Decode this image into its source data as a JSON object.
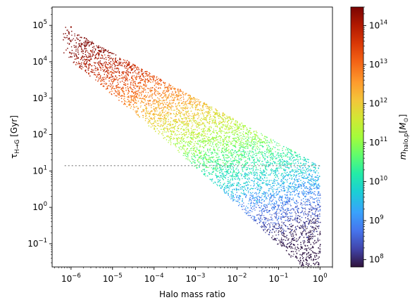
{
  "chart_data": {
    "type": "scatter",
    "title": "",
    "xlabel": "Halo mass ratio",
    "ylabel": "τ_{H→G} [Gyr]",
    "x_scale": "log",
    "y_scale": "log",
    "xlim": [
      3.5e-07,
      2.0
    ],
    "ylim": [
      0.023,
      320000
    ],
    "x_tick_labels": [
      "10^-6",
      "10^-5",
      "10^-4",
      "10^-3",
      "10^-2",
      "10^-1",
      "10^0"
    ],
    "x_tick_values": [
      1e-06,
      1e-05,
      0.0001,
      0.001,
      0.01,
      0.1,
      1
    ],
    "y_tick_labels": [
      "10^-1",
      "10^0",
      "10^1",
      "10^2",
      "10^3",
      "10^4",
      "10^5"
    ],
    "y_tick_values": [
      0.1,
      1,
      10,
      100,
      1000,
      10000,
      100000
    ],
    "reference_line": {
      "style": "dotted",
      "color": "#999999",
      "y": 14,
      "x_range": [
        7e-07,
        1.0
      ]
    },
    "colorbar": {
      "label": "m_{halo,p} [M_⊙]",
      "scale": "log",
      "colormap": "turbo",
      "range": [
        65000000.0,
        300000000000000.0
      ],
      "tick_labels": [
        "10^8",
        "10^9",
        "10^10",
        "10^11",
        "10^12",
        "10^13",
        "10^14"
      ],
      "tick_values": [
        100000000.0,
        1000000000.0,
        10000000000.0,
        100000000000.0,
        1000000000000.0,
        10000000000000.0,
        100000000000000.0
      ]
    },
    "point_cloud": {
      "description_of_trend": "tau decreases roughly as a power law with mass ratio; colour (primary halo mass) decreases toward the lower right",
      "sample_points": [
        {
          "x": 1e-06,
          "y": 90000,
          "m": 200000000000000.0
        },
        {
          "x": 3e-06,
          "y": 20000,
          "m": 100000000000000.0
        },
        {
          "x": 1e-05,
          "y": 5000,
          "m": 30000000000000.0
        },
        {
          "x": 3e-05,
          "y": 1500,
          "m": 10000000000000.0
        },
        {
          "x": 0.0001,
          "y": 500,
          "m": 3000000000000.0
        },
        {
          "x": 0.0003,
          "y": 120,
          "m": 700000000000.0
        },
        {
          "x": 0.001,
          "y": 35,
          "m": 150000000000.0
        },
        {
          "x": 0.003,
          "y": 12,
          "m": 40000000000.0
        },
        {
          "x": 0.01,
          "y": 4,
          "m": 12000000000.0
        },
        {
          "x": 0.03,
          "y": 1.5,
          "m": 4000000000.0
        },
        {
          "x": 0.1,
          "y": 0.5,
          "m": 1000000000.0
        },
        {
          "x": 0.5,
          "y": 0.15,
          "m": 200000000.0
        },
        {
          "x": 1.0,
          "y": 0.06,
          "m": 80000000.0
        }
      ]
    }
  }
}
